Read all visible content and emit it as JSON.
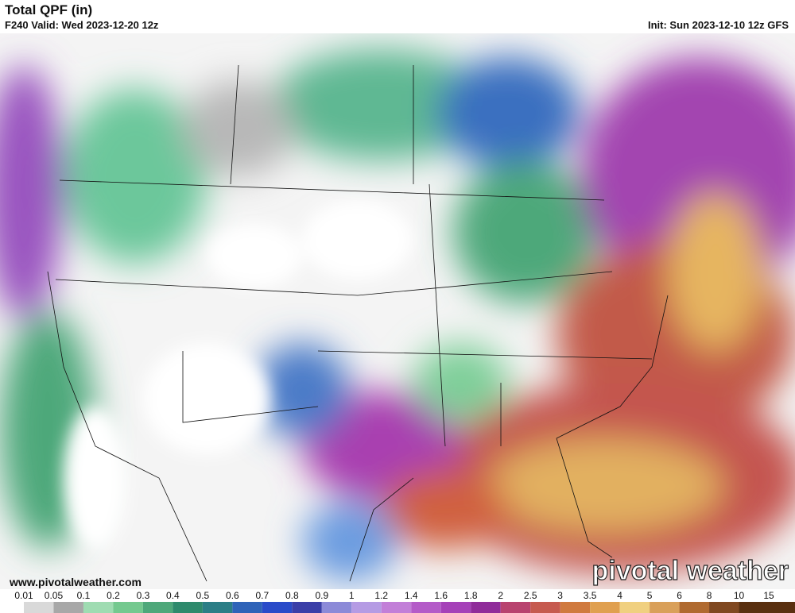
{
  "header": {
    "title": "Total QPF (in)",
    "valid": "F240 Valid: Wed 2023-12-20 12z",
    "init": "Init: Sun 2023-12-10 12z GFS"
  },
  "map": {
    "website": "www.pivotalweather.com",
    "watermark": "pivotal weather"
  },
  "legend": {
    "labels": [
      "0.01",
      "0.05",
      "0.1",
      "0.2",
      "0.3",
      "0.4",
      "0.5",
      "0.6",
      "0.7",
      "0.8",
      "0.9",
      "1",
      "1.2",
      "1.4",
      "1.6",
      "1.8",
      "2",
      "2.5",
      "3",
      "3.5",
      "4",
      "5",
      "6",
      "8",
      "10",
      "15"
    ],
    "colors": [
      "#ffffff",
      "#d9d9d9",
      "#a8a8a8",
      "#9fdcb2",
      "#74c98f",
      "#4ea87a",
      "#2e8a6c",
      "#2b7e86",
      "#2f63b8",
      "#2a4bc9",
      "#3b3fa8",
      "#8c8ad8",
      "#b59be4",
      "#c27fd8",
      "#b45bc8",
      "#a541b8",
      "#902c9a",
      "#b8436f",
      "#c65a4f",
      "#d07a3f",
      "#e0a050",
      "#f0d080",
      "#d9a05a",
      "#b06a30",
      "#804820",
      "#5a3010"
    ]
  }
}
